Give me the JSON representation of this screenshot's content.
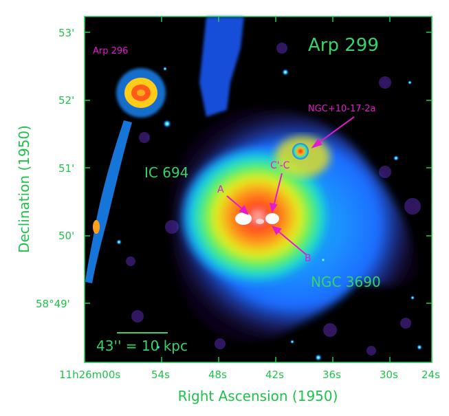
{
  "image": {
    "title": "Arp 299",
    "ylabel": "Declination (1950)",
    "xlabel": "Right Ascension (1950)",
    "colors": {
      "axes": "#22cc55",
      "magenta": "#e21ad0",
      "green_text": "#36d36a"
    },
    "dec_ticks": [
      {
        "label": "53'",
        "value": "53'"
      },
      {
        "label": "52'",
        "value": "52'"
      },
      {
        "label": "51'",
        "value": "51'"
      },
      {
        "label": "50'",
        "value": "50'"
      },
      {
        "label": "58°49'",
        "value": "58°49'"
      }
    ],
    "ra_ticks": [
      {
        "label": "11h26m00s"
      },
      {
        "label": "54s"
      },
      {
        "label": "48s"
      },
      {
        "label": "42s"
      },
      {
        "label": "36s"
      },
      {
        "label": "30s"
      },
      {
        "label": "24s"
      }
    ],
    "labels": {
      "arp296": "Arp 296",
      "ngc_b": "NGC+10-17-2a",
      "ic694": "IC 694",
      "cprime_c": "C'-C",
      "a": "A",
      "b": "B",
      "ngc3690": "NGC 3690",
      "scale": "43'' = 10 kpc"
    }
  }
}
